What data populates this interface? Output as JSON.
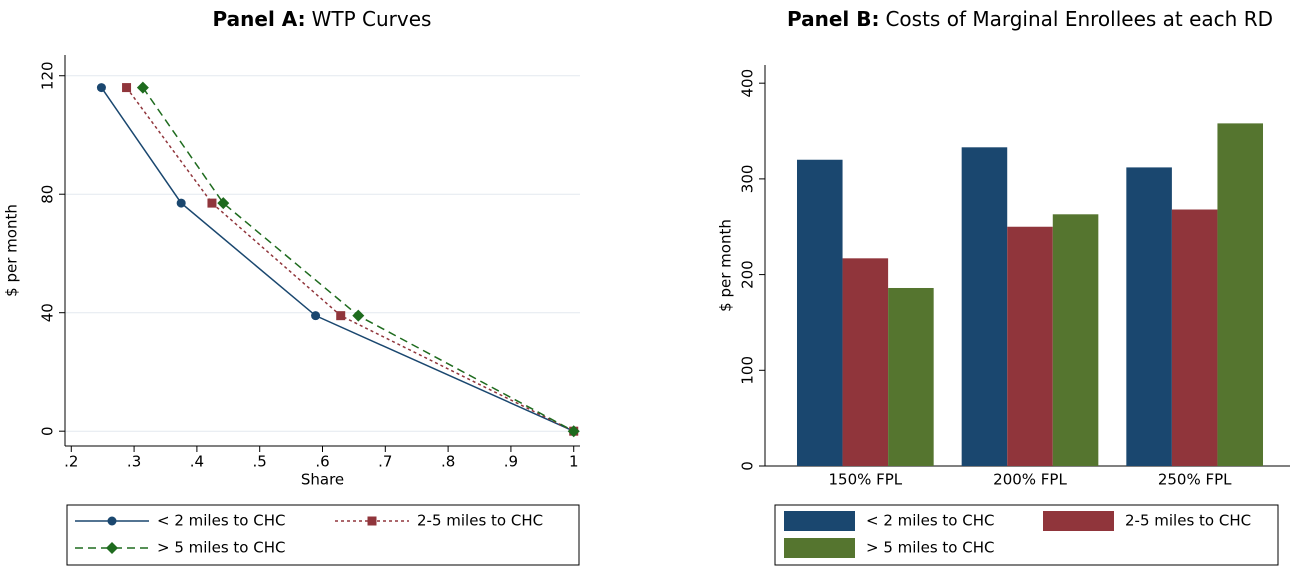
{
  "chart_data": [
    {
      "type": "line",
      "title": {
        "bold": "Panel A:",
        "text": "WTP Curves"
      },
      "x_label": "Share",
      "y_label": "$ per month",
      "xlim": [
        0.19,
        1.01
      ],
      "ylim": [
        -5,
        127
      ],
      "xticks": [
        {
          "value": 0.2,
          "label": ".2"
        },
        {
          "value": 0.3,
          "label": ".3"
        },
        {
          "value": 0.4,
          "label": ".4"
        },
        {
          "value": 0.5,
          "label": ".5"
        },
        {
          "value": 0.6,
          "label": ".6"
        },
        {
          "value": 0.7,
          "label": ".7"
        },
        {
          "value": 0.8,
          "label": ".8"
        },
        {
          "value": 0.9,
          "label": ".9"
        },
        1
      ],
      "yticks": [
        0,
        40,
        80,
        120
      ],
      "grid": true,
      "series": [
        {
          "name": "< 2 miles to CHC",
          "color": "#1a476f",
          "marker": "circle",
          "dash": "solid",
          "x": [
            0.248,
            0.375,
            0.589,
            1
          ],
          "values": [
            116,
            77,
            39,
            0
          ]
        },
        {
          "name": "2-5 miles to CHC",
          "color": "#90353b",
          "marker": "square",
          "dash": "dot",
          "x": [
            0.288,
            0.424,
            0.629,
            1
          ],
          "values": [
            116,
            77,
            39,
            0
          ]
        },
        {
          "name": "> 5 miles to CHC",
          "color": "#1e6b1e",
          "marker": "diamond",
          "dash": "dash",
          "x": [
            0.314,
            0.442,
            0.657,
            1
          ],
          "values": [
            116,
            77,
            39,
            0
          ]
        }
      ]
    },
    {
      "type": "bar",
      "title": {
        "bold": "Panel B:",
        "text": "Costs of Marginal Enrollees at each RD"
      },
      "y_label": "$ per month",
      "categories": [
        "150% FPL",
        "200% FPL",
        "250% FPL"
      ],
      "ylim": [
        0,
        419
      ],
      "yticks": [
        0,
        100,
        200,
        300,
        400
      ],
      "grid": false,
      "series": [
        {
          "name": "< 2 miles to CHC",
          "color": "#1a476f",
          "values": [
            320,
            333,
            312
          ]
        },
        {
          "name": "2-5 miles to CHC",
          "color": "#90353b",
          "values": [
            217,
            250,
            268
          ]
        },
        {
          "name": "> 5 miles to CHC",
          "color": "#55752f",
          "values": [
            186,
            263,
            358
          ]
        }
      ]
    }
  ]
}
